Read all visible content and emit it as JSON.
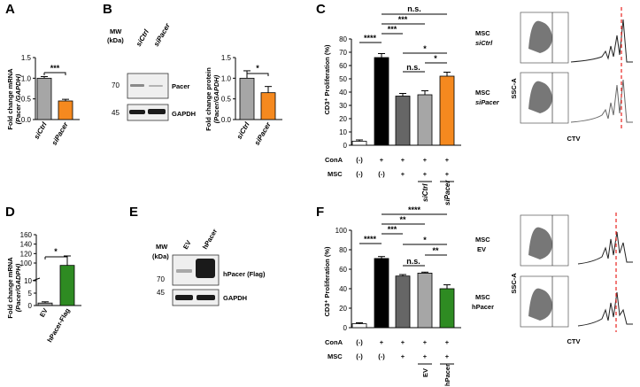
{
  "colors": {
    "grey": "#a6a6a6",
    "dark_grey": "#666666",
    "black": "#000000",
    "white": "#ffffff",
    "orange": "#f5891f",
    "green": "#2e8b22",
    "dash": "#e8231f"
  },
  "panels": {
    "A": {
      "letter": "A",
      "ylabel_line1": "Fold change mRNA",
      "ylabel_line2": "(Pacer /GAPDH)",
      "sig": "***"
    },
    "B": {
      "letter": "B",
      "mw_label_1": "MW",
      "mw_label_2": "(kDa)",
      "lane_1": "siCtrl",
      "lane_2": "siPacer",
      "mw_70": "70",
      "mw_45": "45",
      "band_pacer": "Pacer",
      "band_gapdh": "GAPDH",
      "ylabel_line1": "Fold change protein",
      "ylabel_line2": "(Pacer/GAPDH)",
      "sig": "*"
    },
    "C": {
      "letter": "C",
      "ylabel": "CD3⁺ Proliferation (%)",
      "conA_label": "ConA",
      "msc_label": "MSC",
      "conA_row": [
        "(-)",
        "+",
        "+",
        "+",
        "+"
      ],
      "msc_row": [
        "(-)",
        "(-)",
        "+",
        "+",
        "+"
      ],
      "cat_4": "siCtrl",
      "cat_5": "siPacer",
      "sig": [
        "****",
        "***",
        "***",
        "n.s.",
        "n.s.",
        "*",
        "*"
      ],
      "flow_label_1a": "MSC",
      "flow_label_1b": "siCtrl",
      "flow_label_2a": "MSC",
      "flow_label_2b": "siPacer",
      "ssc": "SSC-A",
      "ctv": "CTV"
    },
    "D": {
      "letter": "D",
      "ylabel_line1": "Fold change mRNA",
      "ylabel_line2": "(Pacer/GADPH)",
      "sig": "*"
    },
    "E": {
      "letter": "E",
      "mw_label_1": "MW",
      "mw_label_2": "(kDa)",
      "lane_1": "EV",
      "lane_2": "hPacer",
      "mw_70": "70",
      "mw_45": "45",
      "band_flag": "hPacer (Flag)",
      "band_gapdh": "GAPDH"
    },
    "F": {
      "letter": "F",
      "ylabel": "CD3⁺ Proliferation (%)",
      "conA_label": "ConA",
      "msc_label": "MSC",
      "conA_row": [
        "(-)",
        "+",
        "+",
        "+",
        "+"
      ],
      "msc_row": [
        "(-)",
        "(-)",
        "+",
        "+",
        "+"
      ],
      "cat_4": "EV",
      "cat_5": "hPacer",
      "sig": [
        "****",
        "***",
        "**",
        "****",
        "n.s.",
        "*",
        "**"
      ],
      "flow_label_1a": "MSC",
      "flow_label_1b": "EV",
      "flow_label_2a": "MSC",
      "flow_label_2b": "hPacer",
      "ssc": "SSC-A",
      "ctv": "CTV"
    }
  },
  "chart_data": [
    {
      "panel": "A",
      "type": "bar",
      "categories": [
        "siCtrl",
        "siPacer"
      ],
      "values": [
        1.0,
        0.45
      ],
      "errors": [
        0.04,
        0.04
      ],
      "ylim": [
        0,
        1.5
      ],
      "yticks": [
        "0.0",
        "0.5",
        "1.0",
        "1.5"
      ],
      "colors": [
        "#a6a6a6",
        "#f5891f"
      ]
    },
    {
      "panel": "B",
      "type": "bar",
      "categories": [
        "siCtrl",
        "siPacer"
      ],
      "values": [
        1.0,
        0.65
      ],
      "errors": [
        0.18,
        0.15
      ],
      "ylim": [
        0,
        1.5
      ],
      "yticks": [
        "0.0",
        "0.5",
        "1.0",
        "1.5"
      ],
      "colors": [
        "#a6a6a6",
        "#f5891f"
      ]
    },
    {
      "panel": "C",
      "type": "bar",
      "values": [
        3,
        66,
        37,
        38,
        52
      ],
      "errors": [
        1,
        3,
        2,
        3,
        3
      ],
      "ylim": [
        0,
        80
      ],
      "yticks": [
        "0",
        "10",
        "20",
        "30",
        "40",
        "50",
        "60",
        "70",
        "80"
      ],
      "colors": [
        "#ffffff",
        "#000000",
        "#666666",
        "#a6a6a6",
        "#f5891f"
      ]
    },
    {
      "panel": "D",
      "type": "bar",
      "categories": [
        "EV",
        "hPacer-Flag"
      ],
      "values": [
        1,
        95
      ],
      "errors": [
        0.5,
        20
      ],
      "ylim": [
        0,
        160
      ],
      "yticks": [
        "0",
        "5",
        "10",
        "100",
        "120",
        "140",
        "160"
      ],
      "axis_break": [
        10,
        70
      ],
      "colors": [
        "#a6a6a6",
        "#2e8b22"
      ]
    },
    {
      "panel": "F",
      "type": "bar",
      "values": [
        4,
        71,
        53,
        56,
        40
      ],
      "errors": [
        1,
        2,
        1.5,
        1,
        4
      ],
      "ylim": [
        0,
        100
      ],
      "yticks": [
        "0",
        "20",
        "40",
        "60",
        "80",
        "100"
      ],
      "colors": [
        "#ffffff",
        "#000000",
        "#666666",
        "#a6a6a6",
        "#2e8b22"
      ]
    }
  ]
}
